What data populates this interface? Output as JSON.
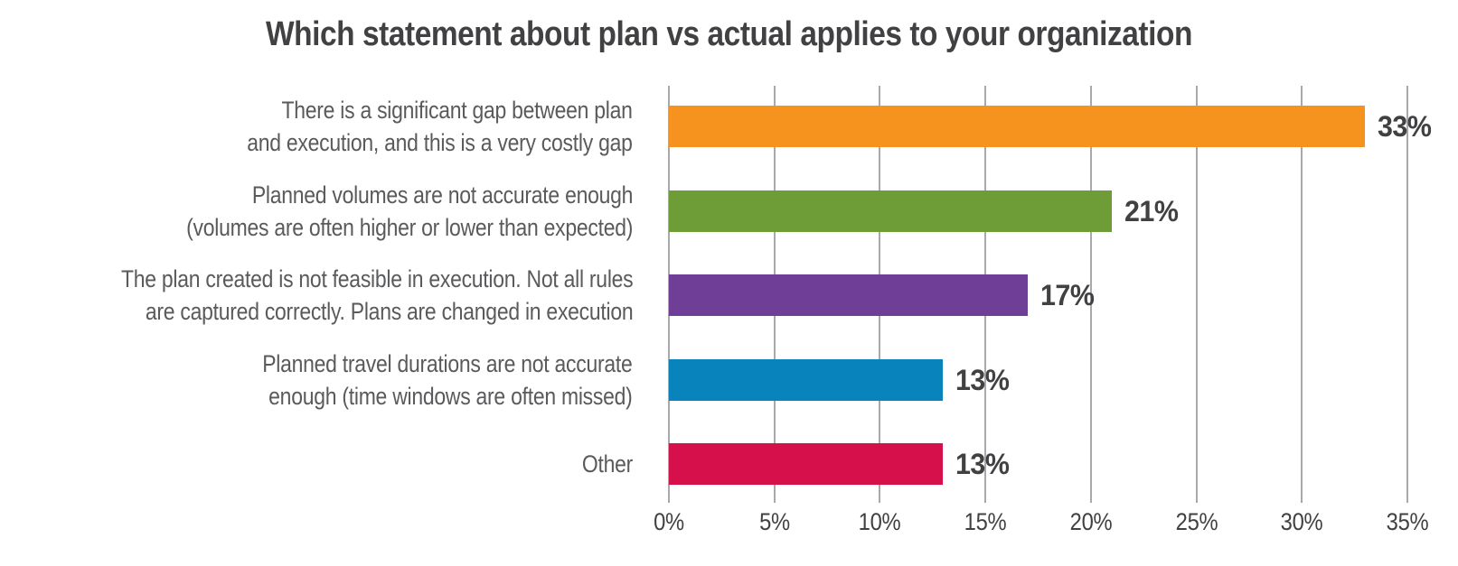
{
  "chart_data": {
    "type": "bar",
    "orientation": "horizontal",
    "title": "Which statement about plan vs actual applies to your organization",
    "categories": [
      {
        "label_lines": [
          "There is a significant gap between plan",
          "and execution, and this is a very costly gap"
        ],
        "label": "There is a significant gap between plan and execution, and this is a very costly gap",
        "value": 33,
        "value_label": "33%",
        "color": "#F6921E"
      },
      {
        "label_lines": [
          "Planned volumes are not accurate enough",
          "(volumes are often higher or lower than expected)"
        ],
        "label": "Planned volumes are not accurate enough (volumes are often higher or lower than expected)",
        "value": 21,
        "value_label": "21%",
        "color": "#6E9C37"
      },
      {
        "label_lines": [
          "The plan created is not feasible in execution. Not all rules",
          "are captured correctly. Plans are changed in execution"
        ],
        "label": "The plan created is not feasible in execution. Not all rules are captured correctly. Plans are changed in execution",
        "value": 17,
        "value_label": "17%",
        "color": "#6F3E97"
      },
      {
        "label_lines": [
          "Planned travel durations are not accurate",
          "enough (time windows are often missed)"
        ],
        "label": "Planned travel durations are not accurate enough (time windows are often missed)",
        "value": 13,
        "value_label": "13%",
        "color": "#0983BC"
      },
      {
        "label_lines": [
          "Other"
        ],
        "label": "Other",
        "value": 13,
        "value_label": "13%",
        "color": "#D6104A"
      }
    ],
    "x_ticks": [
      "0%",
      "5%",
      "10%",
      "15%",
      "20%",
      "25%",
      "30%",
      "35%"
    ],
    "xlim": [
      0,
      35
    ],
    "x_tick_step": 5,
    "grid": "vertical-gridlines",
    "legend": "none",
    "value_labels_position": "right-of-bar",
    "palette": {
      "title_text": "#414042",
      "category_text": "#595A5C",
      "value_text": "#414042",
      "axis_text": "#414042",
      "gridline": "#A7A9AC",
      "background": "#FFFFFF"
    }
  }
}
